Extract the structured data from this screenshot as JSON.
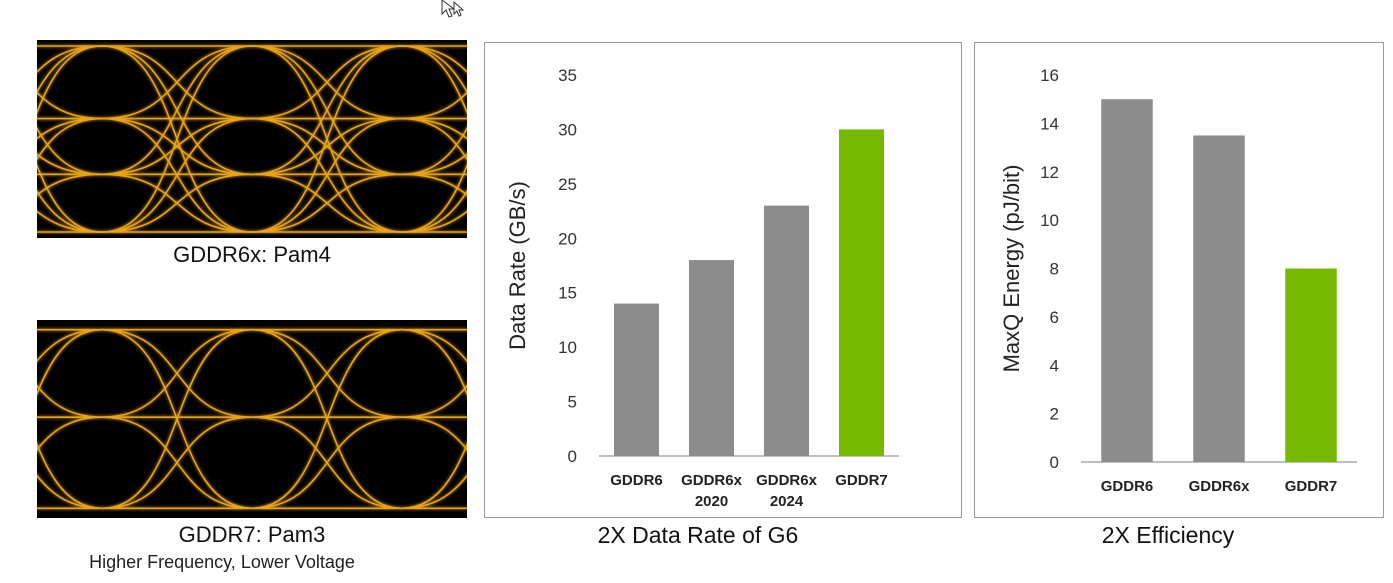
{
  "colors": {
    "eye_trace": "#e8a317",
    "bar_gray": "#8c8c8c",
    "bar_green": "#76b900",
    "axis": "#999999"
  },
  "eye_diagrams": [
    {
      "caption": "GDDR6x: Pam4",
      "subcaption": ""
    },
    {
      "caption": "GDDR7: Pam3",
      "subcaption": "Higher Frequency, Lower Voltage"
    }
  ],
  "chart_data": [
    {
      "type": "bar",
      "caption": "2X Data Rate of G6",
      "ylabel": "Data Rate (GB/s)",
      "ylim": [
        0,
        35
      ],
      "yticks": [
        0,
        5,
        10,
        15,
        20,
        25,
        30,
        35
      ],
      "categories": [
        [
          "GDDR6"
        ],
        [
          "GDDR6x",
          "2020"
        ],
        [
          "GDDR6x",
          "2024"
        ],
        [
          "GDDR7"
        ]
      ],
      "values": [
        14,
        18,
        23,
        30
      ],
      "highlight_index": 3,
      "grid": false
    },
    {
      "type": "bar",
      "caption": "2X Efficiency",
      "ylabel": "MaxQ Energy (pJ/bit)",
      "ylim": [
        0,
        16
      ],
      "yticks": [
        0,
        2,
        4,
        6,
        8,
        10,
        12,
        14,
        16
      ],
      "categories": [
        [
          "GDDR6"
        ],
        [
          "GDDR6x"
        ],
        [
          "GDDR7"
        ]
      ],
      "values": [
        15,
        13.5,
        8
      ],
      "highlight_index": 2,
      "grid": false
    }
  ]
}
